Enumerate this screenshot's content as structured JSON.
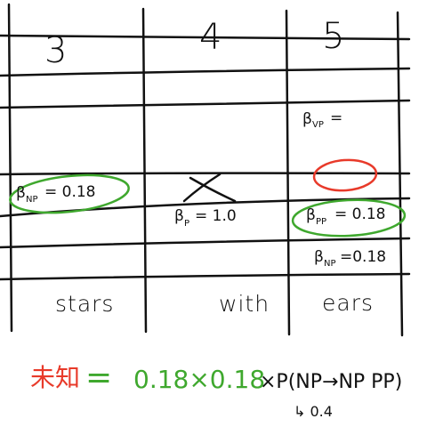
{
  "columns": [
    {
      "header": "3",
      "word": "stars"
    },
    {
      "header": "4",
      "word": "with"
    },
    {
      "header": "5",
      "word": "ears"
    }
  ],
  "cells": {
    "col3_np": {
      "beta": "β",
      "sub": "NP",
      "value": "= 0.18"
    },
    "col4_p": {
      "beta": "β",
      "sub": "P",
      "value": "= 1.0"
    },
    "col5_vp": {
      "beta": "β",
      "sub": "VP",
      "value": "="
    },
    "col5_pp": {
      "beta": "β",
      "sub": "PP",
      "value": "= 0.18"
    },
    "col5_np": {
      "beta": "β",
      "sub": "NP",
      "value": "=0.18"
    }
  },
  "formula": {
    "red_part": "未知",
    "equals": "=",
    "green_part": "0.18×0.18",
    "black_part": "×P(NP→NP PP)",
    "note": "↳ 0.4"
  },
  "colors": {
    "ink": "#111111",
    "red": "#e83a2a",
    "green": "#3fa82e"
  }
}
